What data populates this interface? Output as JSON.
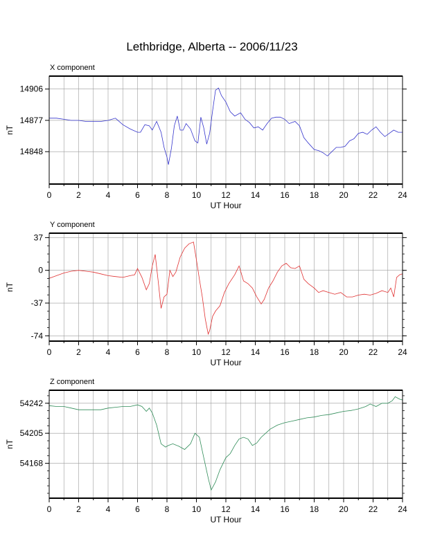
{
  "title": "Lethbridge, Alberta -- 2006/11/23",
  "chart_data": [
    {
      "type": "line",
      "title": "X component",
      "xlabel": "UT Hour",
      "ylabel": "nT",
      "xlim": [
        0,
        24
      ],
      "ylim": [
        14818,
        14918
      ],
      "x_ticks": [
        0,
        2,
        4,
        6,
        8,
        10,
        12,
        14,
        16,
        18,
        20,
        22,
        24
      ],
      "y_ticks": [
        14848,
        14877,
        14906
      ],
      "grid": true,
      "color": "#3333cc",
      "series": [
        {
          "x": [
            0,
            0.5,
            1,
            1.5,
            2,
            2.5,
            3,
            3.5,
            4,
            4.5,
            5,
            5.5,
            6,
            6.2,
            6.5,
            6.8,
            7,
            7.3,
            7.6,
            7.8,
            8,
            8.1,
            8.3,
            8.5,
            8.7,
            8.9,
            9.1,
            9.3,
            9.6,
            9.9,
            10.1,
            10.3,
            10.5,
            10.7,
            10.9,
            11.1,
            11.3,
            11.5,
            11.7,
            12,
            12.3,
            12.6,
            13,
            13.3,
            13.6,
            13.9,
            14.2,
            14.5,
            14.8,
            15.1,
            15.4,
            15.7,
            16,
            16.3,
            16.7,
            17,
            17.3,
            17.6,
            18,
            18.3,
            18.6,
            18.9,
            19.2,
            19.5,
            19.8,
            20.1,
            20.4,
            20.7,
            21,
            21.3,
            21.6,
            21.9,
            22.2,
            22.5,
            22.8,
            23.1,
            23.4,
            23.7,
            24
          ],
          "y": [
            14879,
            14879,
            14878,
            14877,
            14877,
            14876,
            14876,
            14876,
            14877,
            14879,
            14873,
            14869,
            14866,
            14866,
            14873,
            14872,
            14868,
            14876,
            14866,
            14852,
            14843,
            14836,
            14851,
            14872,
            14881,
            14868,
            14868,
            14874,
            14869,
            14858,
            14856,
            14880,
            14870,
            14855,
            14865,
            14886,
            14905,
            14907,
            14900,
            14894,
            14885,
            14881,
            14884,
            14878,
            14875,
            14870,
            14871,
            14868,
            14874,
            14879,
            14880,
            14880,
            14878,
            14874,
            14876,
            14872,
            14861,
            14856,
            14850,
            14849,
            14847,
            14844,
            14848,
            14852,
            14852,
            14853,
            14858,
            14860,
            14865,
            14866,
            14864,
            14868,
            14871,
            14866,
            14862,
            14865,
            14868,
            14866,
            14866
          ]
        }
      ]
    },
    {
      "type": "line",
      "title": "Y component",
      "xlabel": "UT Hour",
      "ylabel": "nT",
      "xlim": [
        0,
        24
      ],
      "ylim": [
        -80,
        42
      ],
      "x_ticks": [
        0,
        2,
        4,
        6,
        8,
        10,
        12,
        14,
        16,
        18,
        20,
        22,
        24
      ],
      "y_ticks": [
        37,
        0,
        -37,
        -74
      ],
      "grid": true,
      "color": "#e03030",
      "series": [
        {
          "x": [
            0,
            0.5,
            1,
            1.5,
            2,
            2.5,
            3,
            3.5,
            4,
            4.5,
            5,
            5.5,
            5.8,
            6,
            6.3,
            6.6,
            6.8,
            7,
            7.2,
            7.4,
            7.6,
            7.8,
            8,
            8.2,
            8.4,
            8.6,
            8.9,
            9.2,
            9.5,
            9.8,
            10,
            10.2,
            10.4,
            10.6,
            10.8,
            10.9,
            11.1,
            11.3,
            11.6,
            11.9,
            12.2,
            12.6,
            12.9,
            13.2,
            13.5,
            13.8,
            14.1,
            14.4,
            14.6,
            14.9,
            15.2,
            15.5,
            15.8,
            16.1,
            16.4,
            16.7,
            17,
            17.3,
            17.6,
            18,
            18.3,
            18.6,
            19,
            19.4,
            19.8,
            20.2,
            20.6,
            21,
            21.4,
            21.8,
            22.2,
            22.6,
            23,
            23.2,
            23.4,
            23.6,
            23.8,
            24
          ],
          "y": [
            -9,
            -6,
            -3,
            -1,
            0,
            -1,
            -2,
            -4,
            -6,
            -7,
            -8,
            -6,
            -5,
            2,
            -8,
            -22,
            -15,
            5,
            18,
            -12,
            -43,
            -30,
            -27,
            0,
            -7,
            -2,
            15,
            25,
            30,
            32,
            12,
            -10,
            -30,
            -55,
            -72,
            -68,
            -52,
            -46,
            -40,
            -25,
            -15,
            -5,
            5,
            -12,
            -15,
            -20,
            -30,
            -38,
            -33,
            -20,
            -12,
            -2,
            5,
            8,
            3,
            2,
            5,
            -10,
            -15,
            -20,
            -25,
            -23,
            -25,
            -27,
            -25,
            -30,
            -30,
            -28,
            -27,
            -28,
            -26,
            -23,
            -25,
            -20,
            -30,
            -8,
            -5,
            -4
          ]
        }
      ]
    },
    {
      "type": "line",
      "title": "Z component",
      "xlabel": "UT Hour",
      "ylabel": "nT",
      "xlim": [
        0,
        24
      ],
      "ylim": [
        54125,
        54258
      ],
      "x_ticks": [
        0,
        2,
        4,
        6,
        8,
        10,
        12,
        14,
        16,
        18,
        20,
        22,
        24
      ],
      "y_ticks": [
        54242,
        54205,
        54168
      ],
      "grid": true,
      "color": "#2e8b57",
      "series": [
        {
          "x": [
            0,
            0.5,
            1,
            1.5,
            2,
            2.5,
            3,
            3.5,
            4,
            4.5,
            5,
            5.5,
            6,
            6.3,
            6.6,
            6.8,
            7,
            7.3,
            7.6,
            7.9,
            8.1,
            8.4,
            8.8,
            9.2,
            9.6,
            9.9,
            10.2,
            10.5,
            10.8,
            11,
            11.3,
            11.6,
            12,
            12.3,
            12.6,
            12.9,
            13.2,
            13.5,
            13.8,
            14.1,
            14.4,
            14.7,
            15,
            15.5,
            16,
            16.5,
            17,
            17.5,
            18,
            18.5,
            19,
            19.5,
            20,
            20.5,
            21,
            21.5,
            21.8,
            22.2,
            22.6,
            23,
            23.3,
            23.5,
            23.8,
            24
          ],
          "y": [
            54239,
            54238,
            54238,
            54236,
            54234,
            54234,
            54234,
            54234,
            54236,
            54237,
            54238,
            54238,
            54240,
            54238,
            54232,
            54236,
            54230,
            54215,
            54192,
            54188,
            54190,
            54192,
            54189,
            54185,
            54192,
            54205,
            54200,
            54175,
            54150,
            54135,
            54145,
            54160,
            54175,
            54180,
            54190,
            54198,
            54200,
            54198,
            54190,
            54193,
            54200,
            54205,
            54210,
            54215,
            54218,
            54220,
            54222,
            54224,
            54225,
            54227,
            54228,
            54230,
            54232,
            54233,
            54235,
            54238,
            54241,
            54238,
            54242,
            54242,
            54245,
            54250,
            54247,
            54246
          ]
        }
      ]
    }
  ]
}
